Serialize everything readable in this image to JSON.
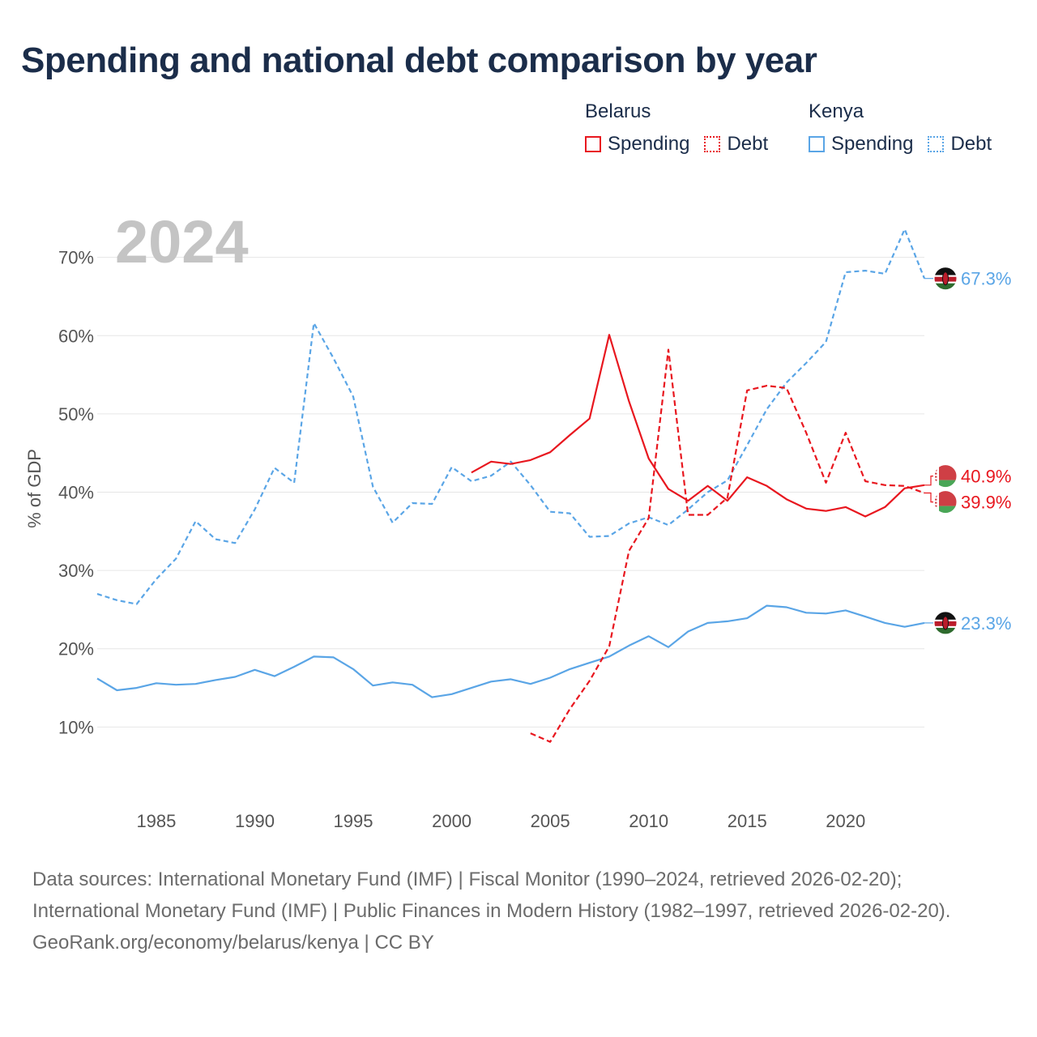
{
  "title": "Spending and national debt comparison by year",
  "legend": {
    "groups": [
      {
        "name": "Belarus",
        "color": "#e8171f",
        "items": [
          {
            "label": "Spending",
            "style": "solid"
          },
          {
            "label": "Debt",
            "style": "dotted"
          }
        ]
      },
      {
        "name": "Kenya",
        "color": "#5aa5e6",
        "items": [
          {
            "label": "Spending",
            "style": "solid"
          },
          {
            "label": "Debt",
            "style": "dotted"
          }
        ]
      }
    ]
  },
  "chart_data": {
    "type": "line",
    "year_label": "2024",
    "ylabel": "% of GDP",
    "xlim": [
      1982,
      2024
    ],
    "ylim": [
      3,
      77
    ],
    "x_ticks": [
      1985,
      1990,
      1995,
      2000,
      2005,
      2010,
      2015,
      2020
    ],
    "y_ticks": [
      10,
      20,
      30,
      40,
      50,
      60,
      70
    ],
    "y_tick_labels": [
      "10%",
      "20%",
      "30%",
      "40%",
      "50%",
      "60%",
      "70%"
    ],
    "series": [
      {
        "name": "Kenya Debt",
        "country": "Kenya",
        "kind": "debt",
        "color": "#5aa5e6",
        "dash": "6 4",
        "x": [
          1982,
          1983,
          1984,
          1985,
          1986,
          1987,
          1988,
          1989,
          1990,
          1991,
          1992,
          1993,
          1994,
          1995,
          1996,
          1997,
          1998,
          1999,
          2000,
          2001,
          2002,
          2003,
          2004,
          2005,
          2006,
          2007,
          2008,
          2009,
          2010,
          2011,
          2012,
          2013,
          2014,
          2015,
          2016,
          2017,
          2018,
          2019,
          2020,
          2021,
          2022,
          2023,
          2024
        ],
        "values": [
          27.0,
          26.2,
          25.7,
          28.9,
          31.5,
          36.3,
          34.0,
          33.5,
          37.8,
          43.1,
          41.2,
          61.6,
          57.1,
          52.2,
          40.7,
          36.1,
          38.6,
          38.5,
          43.2,
          41.4,
          42.1,
          43.9,
          40.9,
          37.5,
          37.3,
          34.3,
          34.4,
          36.0,
          36.8,
          35.8,
          37.8,
          40.0,
          41.5,
          46.0,
          50.6,
          54.0,
          56.5,
          59.2,
          68.1,
          68.3,
          67.9,
          73.6,
          67.3
        ],
        "end_label": "67.3%"
      },
      {
        "name": "Kenya Spending",
        "country": "Kenya",
        "kind": "spending",
        "color": "#5aa5e6",
        "dash": "",
        "x": [
          1982,
          1983,
          1984,
          1985,
          1986,
          1987,
          1988,
          1989,
          1990,
          1991,
          1992,
          1993,
          1994,
          1995,
          1996,
          1997,
          1998,
          1999,
          2000,
          2001,
          2002,
          2003,
          2004,
          2005,
          2006,
          2007,
          2008,
          2009,
          2010,
          2011,
          2012,
          2013,
          2014,
          2015,
          2016,
          2017,
          2018,
          2019,
          2020,
          2021,
          2022,
          2023,
          2024
        ],
        "values": [
          16.2,
          14.7,
          15.0,
          15.6,
          15.4,
          15.5,
          16.0,
          16.4,
          17.3,
          16.5,
          17.7,
          19.0,
          18.9,
          17.4,
          15.3,
          15.7,
          15.4,
          13.8,
          14.2,
          15.0,
          15.8,
          16.1,
          15.5,
          16.3,
          17.4,
          18.2,
          19.0,
          20.4,
          21.6,
          20.2,
          22.2,
          23.3,
          23.5,
          23.9,
          25.5,
          25.3,
          24.6,
          24.5,
          24.9,
          24.1,
          23.3,
          22.8,
          23.3
        ],
        "end_label": "23.3%"
      },
      {
        "name": "Belarus Debt",
        "country": "Belarus",
        "kind": "debt",
        "color": "#e8171f",
        "dash": "7 4",
        "x": [
          2004,
          2005,
          2006,
          2007,
          2008,
          2009,
          2010,
          2011,
          2012,
          2013,
          2014,
          2015,
          2016,
          2017,
          2018,
          2019,
          2020,
          2021,
          2022,
          2023,
          2024
        ],
        "values": [
          9.2,
          8.1,
          12.3,
          15.9,
          20.3,
          32.5,
          36.7,
          58.2,
          37.1,
          37.1,
          39.3,
          53.0,
          53.6,
          53.3,
          47.6,
          41.2,
          47.6,
          41.4,
          40.9,
          40.8,
          39.9
        ],
        "end_label": "39.9%"
      },
      {
        "name": "Belarus Spending",
        "country": "Belarus",
        "kind": "spending",
        "color": "#e8171f",
        "dash": "",
        "x": [
          2001,
          2002,
          2003,
          2004,
          2005,
          2006,
          2007,
          2008,
          2009,
          2010,
          2011,
          2012,
          2013,
          2014,
          2015,
          2016,
          2017,
          2018,
          2019,
          2020,
          2021,
          2022,
          2023,
          2024
        ],
        "values": [
          42.5,
          43.9,
          43.6,
          44.1,
          45.1,
          47.3,
          49.4,
          60.1,
          51.6,
          44.3,
          40.4,
          38.9,
          40.8,
          38.9,
          41.9,
          40.8,
          39.1,
          37.9,
          37.6,
          38.1,
          36.9,
          38.1,
          40.5,
          40.9
        ],
        "end_label": "40.9%"
      }
    ]
  },
  "footer": {
    "sources": "Data sources: International Monetary Fund (IMF) | Fiscal Monitor (1990–2024, retrieved 2026-02-20); International Monetary Fund (IMF) | Public Finances in Modern History (1982–1997, retrieved 2026-02-20).",
    "credit": "GeoRank.org/economy/belarus/kenya | CC BY"
  }
}
